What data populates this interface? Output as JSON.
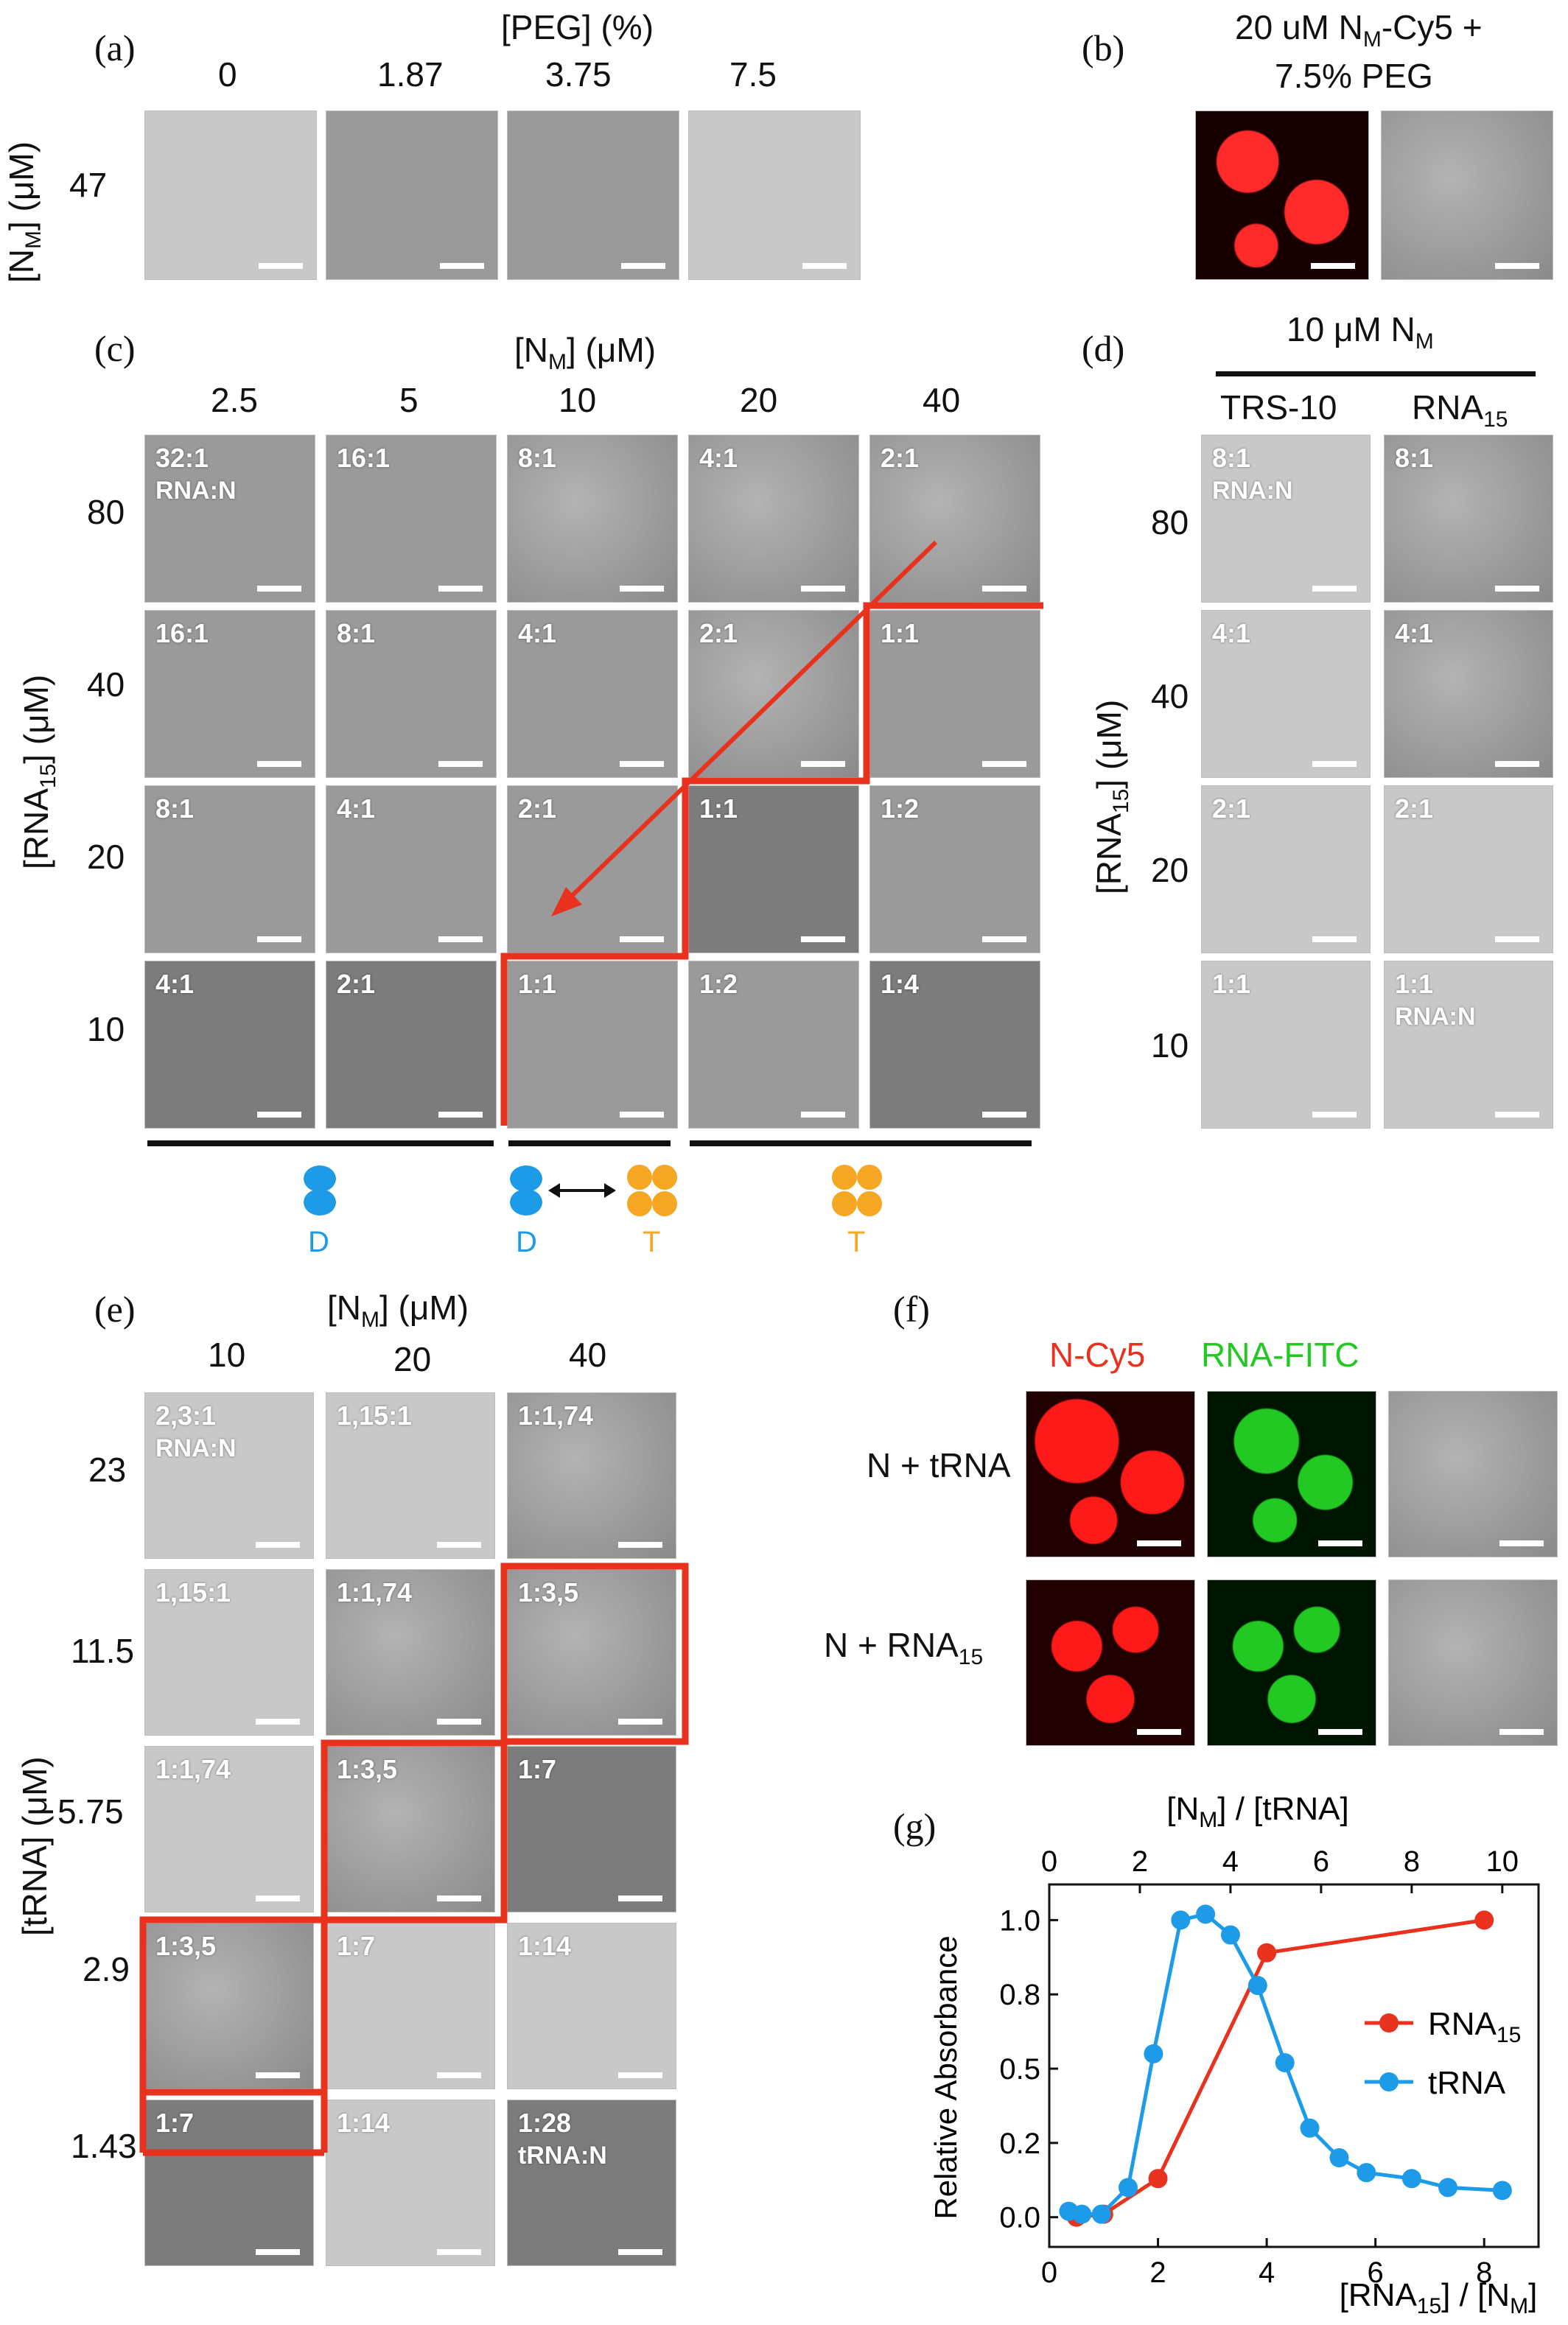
{
  "panel_a": {
    "letter": "(a)",
    "title": "[PEG] (%)",
    "cols": [
      "0",
      "1.87",
      "3.75",
      "7.5"
    ],
    "row_label": "47",
    "axis_label": "[N",
    "axis_sub": "M",
    "axis_unit": "] (μM)"
  },
  "panel_b": {
    "letter": "(b)",
    "line1": "20 uM N",
    "line1_sub": "M",
    "line1_end": "-Cy5 +",
    "line2": "7.5% PEG"
  },
  "panel_c": {
    "letter": "(c)",
    "title": "[N",
    "title_sub": "M",
    "title_end": "] (μM)",
    "cols": [
      "2.5",
      "5",
      "10",
      "20",
      "40"
    ],
    "rows": [
      "80",
      "40",
      "20",
      "10"
    ],
    "axis_label": "[RNA",
    "axis_sub": "15",
    "axis_unit": "] (μM)",
    "ratios": [
      [
        "32:1",
        "16:1",
        "8:1",
        "4:1",
        "2:1"
      ],
      [
        "16:1",
        "8:1",
        "4:1",
        "2:1",
        "1:1"
      ],
      [
        "8:1",
        "4:1",
        "2:1",
        "1:1",
        "1:2"
      ],
      [
        "4:1",
        "2:1",
        "1:1",
        "1:2",
        "1:4"
      ]
    ],
    "first_sub": "RNA:N",
    "legend": [
      {
        "letter": "D"
      },
      {
        "letter": "D",
        "letter2": "T"
      },
      {
        "letter": "T"
      }
    ]
  },
  "panel_d": {
    "letter": "(d)",
    "title": "10 μM N",
    "title_sub": "M",
    "cols": [
      "TRS-10",
      "RNA"
    ],
    "col2_sub": "15",
    "rows": [
      "80",
      "40",
      "20",
      "10"
    ],
    "axis_label": "[RNA",
    "axis_sub": "15",
    "axis_unit": "] (μM)",
    "ratios": [
      "8:1",
      "4:1",
      "2:1",
      "1:1"
    ],
    "sub_first": "RNA:N",
    "sub_last": "RNA:N"
  },
  "panel_e": {
    "letter": "(e)",
    "title": "[N",
    "title_sub": "M",
    "title_end": "] (μM)",
    "cols": [
      "10",
      "20",
      "40"
    ],
    "rows": [
      "23",
      "11.5",
      "5.75",
      "2.9",
      "1.43"
    ],
    "axis_label": "[tRNA] (μM)",
    "ratios": [
      [
        "2,3:1",
        "1,15:1",
        "1:1,74"
      ],
      [
        "1,15:1",
        "1:1,74",
        "1:3,5"
      ],
      [
        "1:1,74",
        "1:3,5",
        "1:7"
      ],
      [
        "1:3,5",
        "1:7",
        "1:14"
      ],
      [
        "1:7",
        "1:14",
        "1:28"
      ]
    ],
    "first_sub": "RNA:N",
    "last_sub": "tRNA:N"
  },
  "panel_f": {
    "letter": "(f)",
    "col1": "N-Cy5",
    "col2": "RNA-FITC",
    "row1": "N + tRNA",
    "row2": "N + RNA",
    "row2_sub": "15"
  },
  "panel_g": {
    "letter": "(g)"
  },
  "colors": {
    "red": "#e8321e",
    "blue": "#1e9be8",
    "orange": "#f5a623",
    "fluor_red": "#ff1a1a",
    "fluor_green": "#22c922"
  },
  "chart_data": {
    "type": "line",
    "ylabel": "Relative Absorbance",
    "xlabel": "[RNA",
    "xlabel_sub": "15",
    "xlabel_end": "] / [N",
    "xlabel_sub2": "M",
    "xlabel_end2": "]",
    "x2label": "[N",
    "x2label_sub": "M",
    "x2label_end": "] / [tRNA]",
    "xlim": [
      0,
      9
    ],
    "x_ticks": [
      "0",
      "2",
      "4",
      "6",
      "8"
    ],
    "x2lim": [
      0,
      10.8
    ],
    "x2_ticks": [
      "0",
      "2",
      "4",
      "6",
      "8",
      "10"
    ],
    "ylim": [
      -0.1,
      1.12
    ],
    "y_ticks": [
      "0.0",
      "0.2",
      "0.5",
      "0.8",
      "1.0"
    ],
    "y_tick_values": [
      0.0,
      0.25,
      0.5,
      0.75,
      1.0
    ],
    "legend_position": "middle-right",
    "series": [
      {
        "name": "RNA",
        "name_sub": "15",
        "axis": "bottom",
        "x": [
          0.5,
          1.0,
          2.0,
          4.0,
          8.0
        ],
        "y": [
          0.0,
          0.01,
          0.13,
          0.89,
          1.0
        ]
      },
      {
        "name": "tRNA",
        "axis": "top",
        "x": [
          0.43,
          0.72,
          1.15,
          1.74,
          2.3,
          2.9,
          3.45,
          4.0,
          4.6,
          5.2,
          5.75,
          6.4,
          7.0,
          8.0,
          8.8,
          10.0
        ],
        "y": [
          0.02,
          0.01,
          0.01,
          0.1,
          0.55,
          1.0,
          1.02,
          0.95,
          0.78,
          0.52,
          0.3,
          0.2,
          0.15,
          0.13,
          0.1,
          0.09
        ]
      }
    ]
  }
}
